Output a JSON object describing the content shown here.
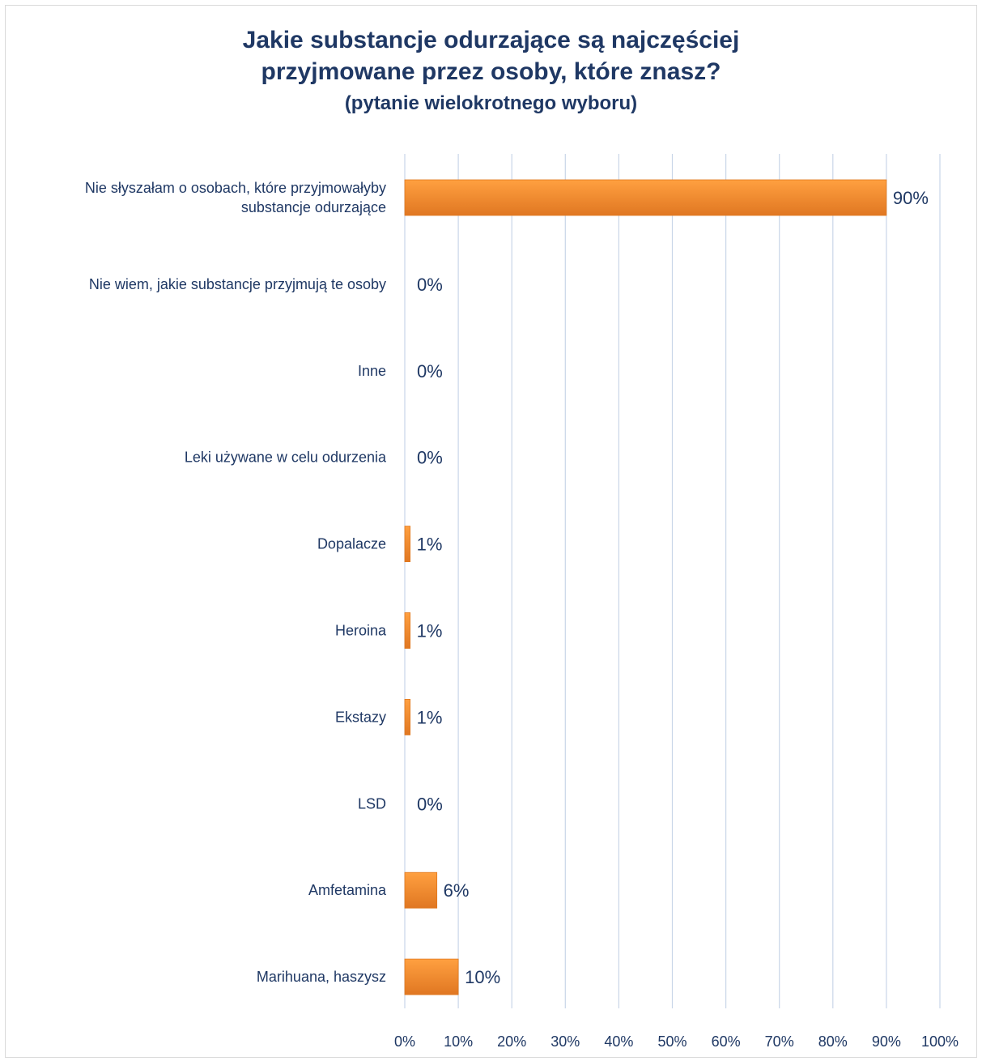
{
  "chart_data": {
    "type": "bar",
    "orientation": "horizontal",
    "title": "Jakie substancje odurzające są najczęściej przyjmowane przez osoby, które znasz?",
    "title_line1": "Jakie substancje odurzające są najczęściej",
    "title_line2": "przyjmowane przez osoby, które znasz?",
    "subtitle": "(pytanie wielokrotnego wyboru)",
    "categories": [
      [
        "Nie słyszałam o osobach, które przyjmowałyby",
        "substancje odurzające"
      ],
      [
        "Nie wiem, jakie substancje przyjmują te osoby"
      ],
      [
        "Inne"
      ],
      [
        "Leki używane w celu odurzenia"
      ],
      [
        "Dopalacze"
      ],
      [
        "Heroina"
      ],
      [
        "Ekstazy"
      ],
      [
        "LSD"
      ],
      [
        "Amfetamina"
      ],
      [
        "Marihuana, haszysz"
      ]
    ],
    "values": [
      90,
      0,
      0,
      0,
      1,
      1,
      1,
      0,
      6,
      10
    ],
    "value_labels": [
      "90%",
      "0%",
      "0%",
      "0%",
      "1%",
      "1%",
      "1%",
      "0%",
      "6%",
      "10%"
    ],
    "xlim": [
      0,
      100
    ],
    "x_ticks": [
      "0%",
      "10%",
      "20%",
      "30%",
      "40%",
      "50%",
      "60%",
      "70%",
      "80%",
      "90%",
      "100%"
    ],
    "grid": "vertical",
    "bar_color": "#f08a2a",
    "bar_gradient": [
      "#ffa040",
      "#e07722"
    ],
    "grid_color": "#c9d6e8",
    "text_color": "#1f3864"
  }
}
